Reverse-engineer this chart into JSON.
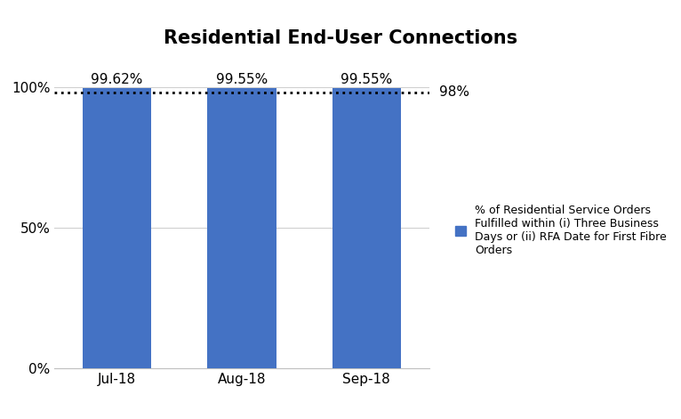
{
  "title": "Residential End-User Connections",
  "categories": [
    "Jul-18",
    "Aug-18",
    "Sep-18"
  ],
  "values": [
    99.62,
    99.55,
    99.55
  ],
  "bar_color": "#4472C4",
  "bar_labels": [
    "99.62%",
    "99.55%",
    "99.55%"
  ],
  "threshold_value": 98,
  "threshold_label": "98%",
  "yticks": [
    0,
    50,
    100
  ],
  "ytick_labels": [
    "0%",
    "50%",
    "100%"
  ],
  "ylim": [
    0,
    107
  ],
  "legend_text": "% of Residential Service Orders\nFulfilled within (i) Three Business\nDays or (ii) RFA Date for First Fibre\nOrders",
  "title_fontsize": 15,
  "tick_fontsize": 11,
  "label_fontsize": 11,
  "background_color": "#ffffff",
  "grid_color": "#d0d0d0",
  "threshold_line_color": "#000000",
  "bar_width": 0.55
}
